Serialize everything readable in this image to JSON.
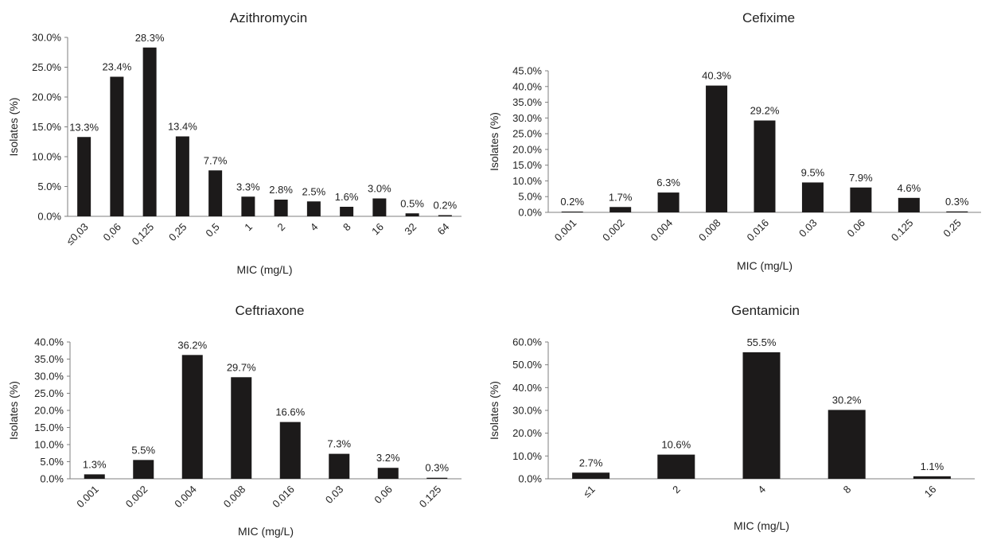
{
  "chart_data": [
    {
      "type": "bar",
      "title": "Azithromycin",
      "xlabel": "MIC (mg/L)",
      "ylabel": "Isolates (%)",
      "categories": [
        "≤0,03",
        "0,06",
        "0,125",
        "0,25",
        "0,5",
        "1",
        "2",
        "4",
        "8",
        "16",
        "32",
        "64"
      ],
      "values": [
        13.3,
        23.4,
        28.3,
        13.4,
        7.7,
        3.3,
        2.8,
        2.5,
        1.6,
        3.0,
        0.5,
        0.2
      ],
      "value_labels": [
        "13.3%",
        "23.4%",
        "28.3%",
        "13.4%",
        "7.7%",
        "3.3%",
        "2.8%",
        "2.5%",
        "1.6%",
        "3.0%",
        "0.5%",
        "0.2%"
      ],
      "ylim": [
        0,
        30
      ],
      "yticks": [
        0,
        5,
        10,
        15,
        20,
        25,
        30
      ],
      "ytick_labels": [
        "0.0%",
        "5.0%",
        "10.0%",
        "15.0%",
        "20.0%",
        "25.0%",
        "30.0%"
      ],
      "bar_color": "#1c1a1a",
      "grid": false,
      "legend": "none"
    },
    {
      "type": "bar",
      "title": "Cefixime",
      "xlabel": "MIC (mg/L)",
      "ylabel": "Isolates (%)",
      "categories": [
        "0.001",
        "0.002",
        "0.004",
        "0.008",
        "0.016",
        "0.03",
        "0.06",
        "0.125",
        "0.25"
      ],
      "values": [
        0.2,
        1.7,
        6.3,
        40.3,
        29.2,
        9.5,
        7.9,
        4.6,
        0.3
      ],
      "value_labels": [
        "0.2%",
        "1.7%",
        "6.3%",
        "40.3%",
        "29.2%",
        "9.5%",
        "7.9%",
        "4.6%",
        "0.3%"
      ],
      "ylim": [
        0,
        45
      ],
      "yticks": [
        0,
        5,
        10,
        15,
        20,
        25,
        30,
        35,
        40,
        45
      ],
      "ytick_labels": [
        "0.0%",
        "5.0%",
        "10.0%",
        "15.0%",
        "20.0%",
        "25.0%",
        "30.0%",
        "35.0%",
        "40.0%",
        "45.0%"
      ],
      "bar_color": "#1c1a1a",
      "grid": false,
      "legend": "none"
    },
    {
      "type": "bar",
      "title": "Ceftriaxone",
      "xlabel": "MIC (mg/L)",
      "ylabel": "Isolates (%)",
      "categories": [
        "0.001",
        "0.002",
        "0.004",
        "0.008",
        "0.016",
        "0.03",
        "0.06",
        "0.125"
      ],
      "values": [
        1.3,
        5.5,
        36.2,
        29.7,
        16.6,
        7.3,
        3.2,
        0.3
      ],
      "value_labels": [
        "1.3%",
        "5.5%",
        "36.2%",
        "29.7%",
        "16.6%",
        "7.3%",
        "3.2%",
        "0.3%"
      ],
      "ylim": [
        0,
        40
      ],
      "yticks": [
        0,
        5,
        10,
        15,
        20,
        25,
        30,
        35,
        40
      ],
      "ytick_labels": [
        "0.0%",
        "5.0%",
        "10.0%",
        "15.0%",
        "20.0%",
        "25.0%",
        "30.0%",
        "35.0%",
        "40.0%"
      ],
      "bar_color": "#1c1a1a",
      "grid": false,
      "legend": "none"
    },
    {
      "type": "bar",
      "title": "Gentamicin",
      "xlabel": "MIC (mg/L)",
      "ylabel": "Isolates (%)",
      "categories": [
        "≤1",
        "2",
        "4",
        "8",
        "16"
      ],
      "values": [
        2.7,
        10.6,
        55.5,
        30.2,
        1.1
      ],
      "value_labels": [
        "2.7%",
        "10.6%",
        "55.5%",
        "30.2%",
        "1.1%"
      ],
      "ylim": [
        0,
        60
      ],
      "yticks": [
        0,
        10,
        20,
        30,
        40,
        50,
        60
      ],
      "ytick_labels": [
        "0.0%",
        "10.0%",
        "20.0%",
        "30.0%",
        "40.0%",
        "50.0%",
        "60.0%"
      ],
      "bar_color": "#1c1a1a",
      "grid": false,
      "legend": "none"
    }
  ]
}
